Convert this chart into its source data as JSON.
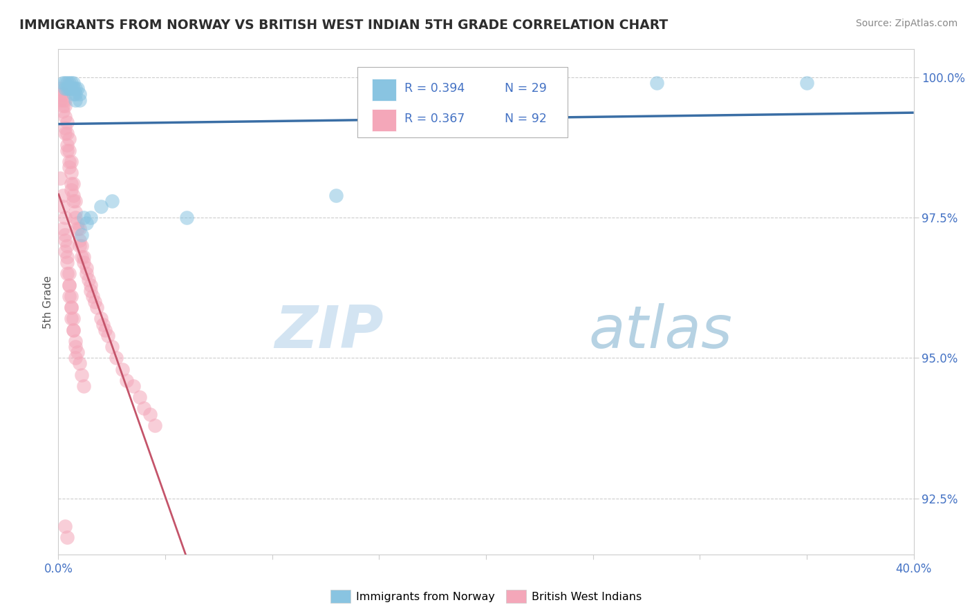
{
  "title": "IMMIGRANTS FROM NORWAY VS BRITISH WEST INDIAN 5TH GRADE CORRELATION CHART",
  "source": "Source: ZipAtlas.com",
  "ylabel": "5th Grade",
  "xlim": [
    0.0,
    0.4
  ],
  "ylim": [
    0.915,
    1.005
  ],
  "xtick_positions": [
    0.0,
    0.05,
    0.1,
    0.15,
    0.2,
    0.25,
    0.3,
    0.35,
    0.4
  ],
  "xticklabels": [
    "0.0%",
    "",
    "",
    "",
    "",
    "",
    "",
    "",
    "40.0%"
  ],
  "ytick_positions": [
    0.925,
    0.95,
    0.975,
    1.0
  ],
  "yticklabels": [
    "92.5%",
    "95.0%",
    "97.5%",
    "100.0%"
  ],
  "norway_R": 0.394,
  "norway_N": 29,
  "bwi_R": 0.367,
  "bwi_N": 92,
  "norway_color": "#89c4e1",
  "bwi_color": "#f4a7b9",
  "norway_line_color": "#3a6ea5",
  "bwi_line_color": "#c4546a",
  "legend_text_color": "#4472c4",
  "tick_color": "#4472c4",
  "grid_color": "#cccccc",
  "watermark": "ZIPatlas",
  "watermark_color": "#c8dff0",
  "background_color": "#ffffff",
  "norway_x": [
    0.002,
    0.003,
    0.004,
    0.004,
    0.005,
    0.005,
    0.006,
    0.006,
    0.007,
    0.007,
    0.007,
    0.008,
    0.008,
    0.009,
    0.01,
    0.01,
    0.011,
    0.012,
    0.013,
    0.015,
    0.02,
    0.025,
    0.06,
    0.13,
    0.28,
    0.35,
    0.003,
    0.005,
    0.008
  ],
  "norway_y": [
    0.999,
    0.999,
    0.999,
    0.998,
    0.999,
    0.998,
    0.998,
    0.999,
    0.998,
    0.999,
    0.997,
    0.998,
    0.997,
    0.998,
    0.996,
    0.997,
    0.972,
    0.975,
    0.974,
    0.975,
    0.977,
    0.978,
    0.975,
    0.979,
    0.999,
    0.999,
    0.998,
    0.998,
    0.996
  ],
  "bwi_x": [
    0.001,
    0.001,
    0.001,
    0.002,
    0.002,
    0.002,
    0.002,
    0.003,
    0.003,
    0.003,
    0.003,
    0.003,
    0.004,
    0.004,
    0.004,
    0.004,
    0.005,
    0.005,
    0.005,
    0.005,
    0.006,
    0.006,
    0.006,
    0.006,
    0.007,
    0.007,
    0.007,
    0.008,
    0.008,
    0.008,
    0.009,
    0.009,
    0.01,
    0.01,
    0.01,
    0.011,
    0.011,
    0.012,
    0.012,
    0.013,
    0.013,
    0.014,
    0.015,
    0.015,
    0.016,
    0.017,
    0.018,
    0.02,
    0.021,
    0.022,
    0.023,
    0.025,
    0.027,
    0.03,
    0.032,
    0.035,
    0.038,
    0.04,
    0.043,
    0.045,
    0.002,
    0.003,
    0.003,
    0.004,
    0.004,
    0.005,
    0.005,
    0.006,
    0.006,
    0.007,
    0.008,
    0.009,
    0.01,
    0.011,
    0.012,
    0.001,
    0.002,
    0.002,
    0.003,
    0.003,
    0.004,
    0.004,
    0.005,
    0.005,
    0.006,
    0.006,
    0.007,
    0.007,
    0.008,
    0.008,
    0.003,
    0.004
  ],
  "bwi_y": [
    0.998,
    0.997,
    0.996,
    0.997,
    0.996,
    0.995,
    0.994,
    0.996,
    0.995,
    0.993,
    0.991,
    0.99,
    0.992,
    0.99,
    0.988,
    0.987,
    0.989,
    0.987,
    0.985,
    0.984,
    0.985,
    0.983,
    0.981,
    0.98,
    0.981,
    0.979,
    0.978,
    0.978,
    0.976,
    0.975,
    0.974,
    0.973,
    0.973,
    0.971,
    0.97,
    0.97,
    0.968,
    0.968,
    0.967,
    0.966,
    0.965,
    0.964,
    0.963,
    0.962,
    0.961,
    0.96,
    0.959,
    0.957,
    0.956,
    0.955,
    0.954,
    0.952,
    0.95,
    0.948,
    0.946,
    0.945,
    0.943,
    0.941,
    0.94,
    0.938,
    0.973,
    0.971,
    0.969,
    0.967,
    0.965,
    0.963,
    0.961,
    0.959,
    0.957,
    0.955,
    0.953,
    0.951,
    0.949,
    0.947,
    0.945,
    0.982,
    0.979,
    0.977,
    0.975,
    0.972,
    0.97,
    0.968,
    0.965,
    0.963,
    0.961,
    0.959,
    0.957,
    0.955,
    0.952,
    0.95,
    0.92,
    0.918
  ]
}
